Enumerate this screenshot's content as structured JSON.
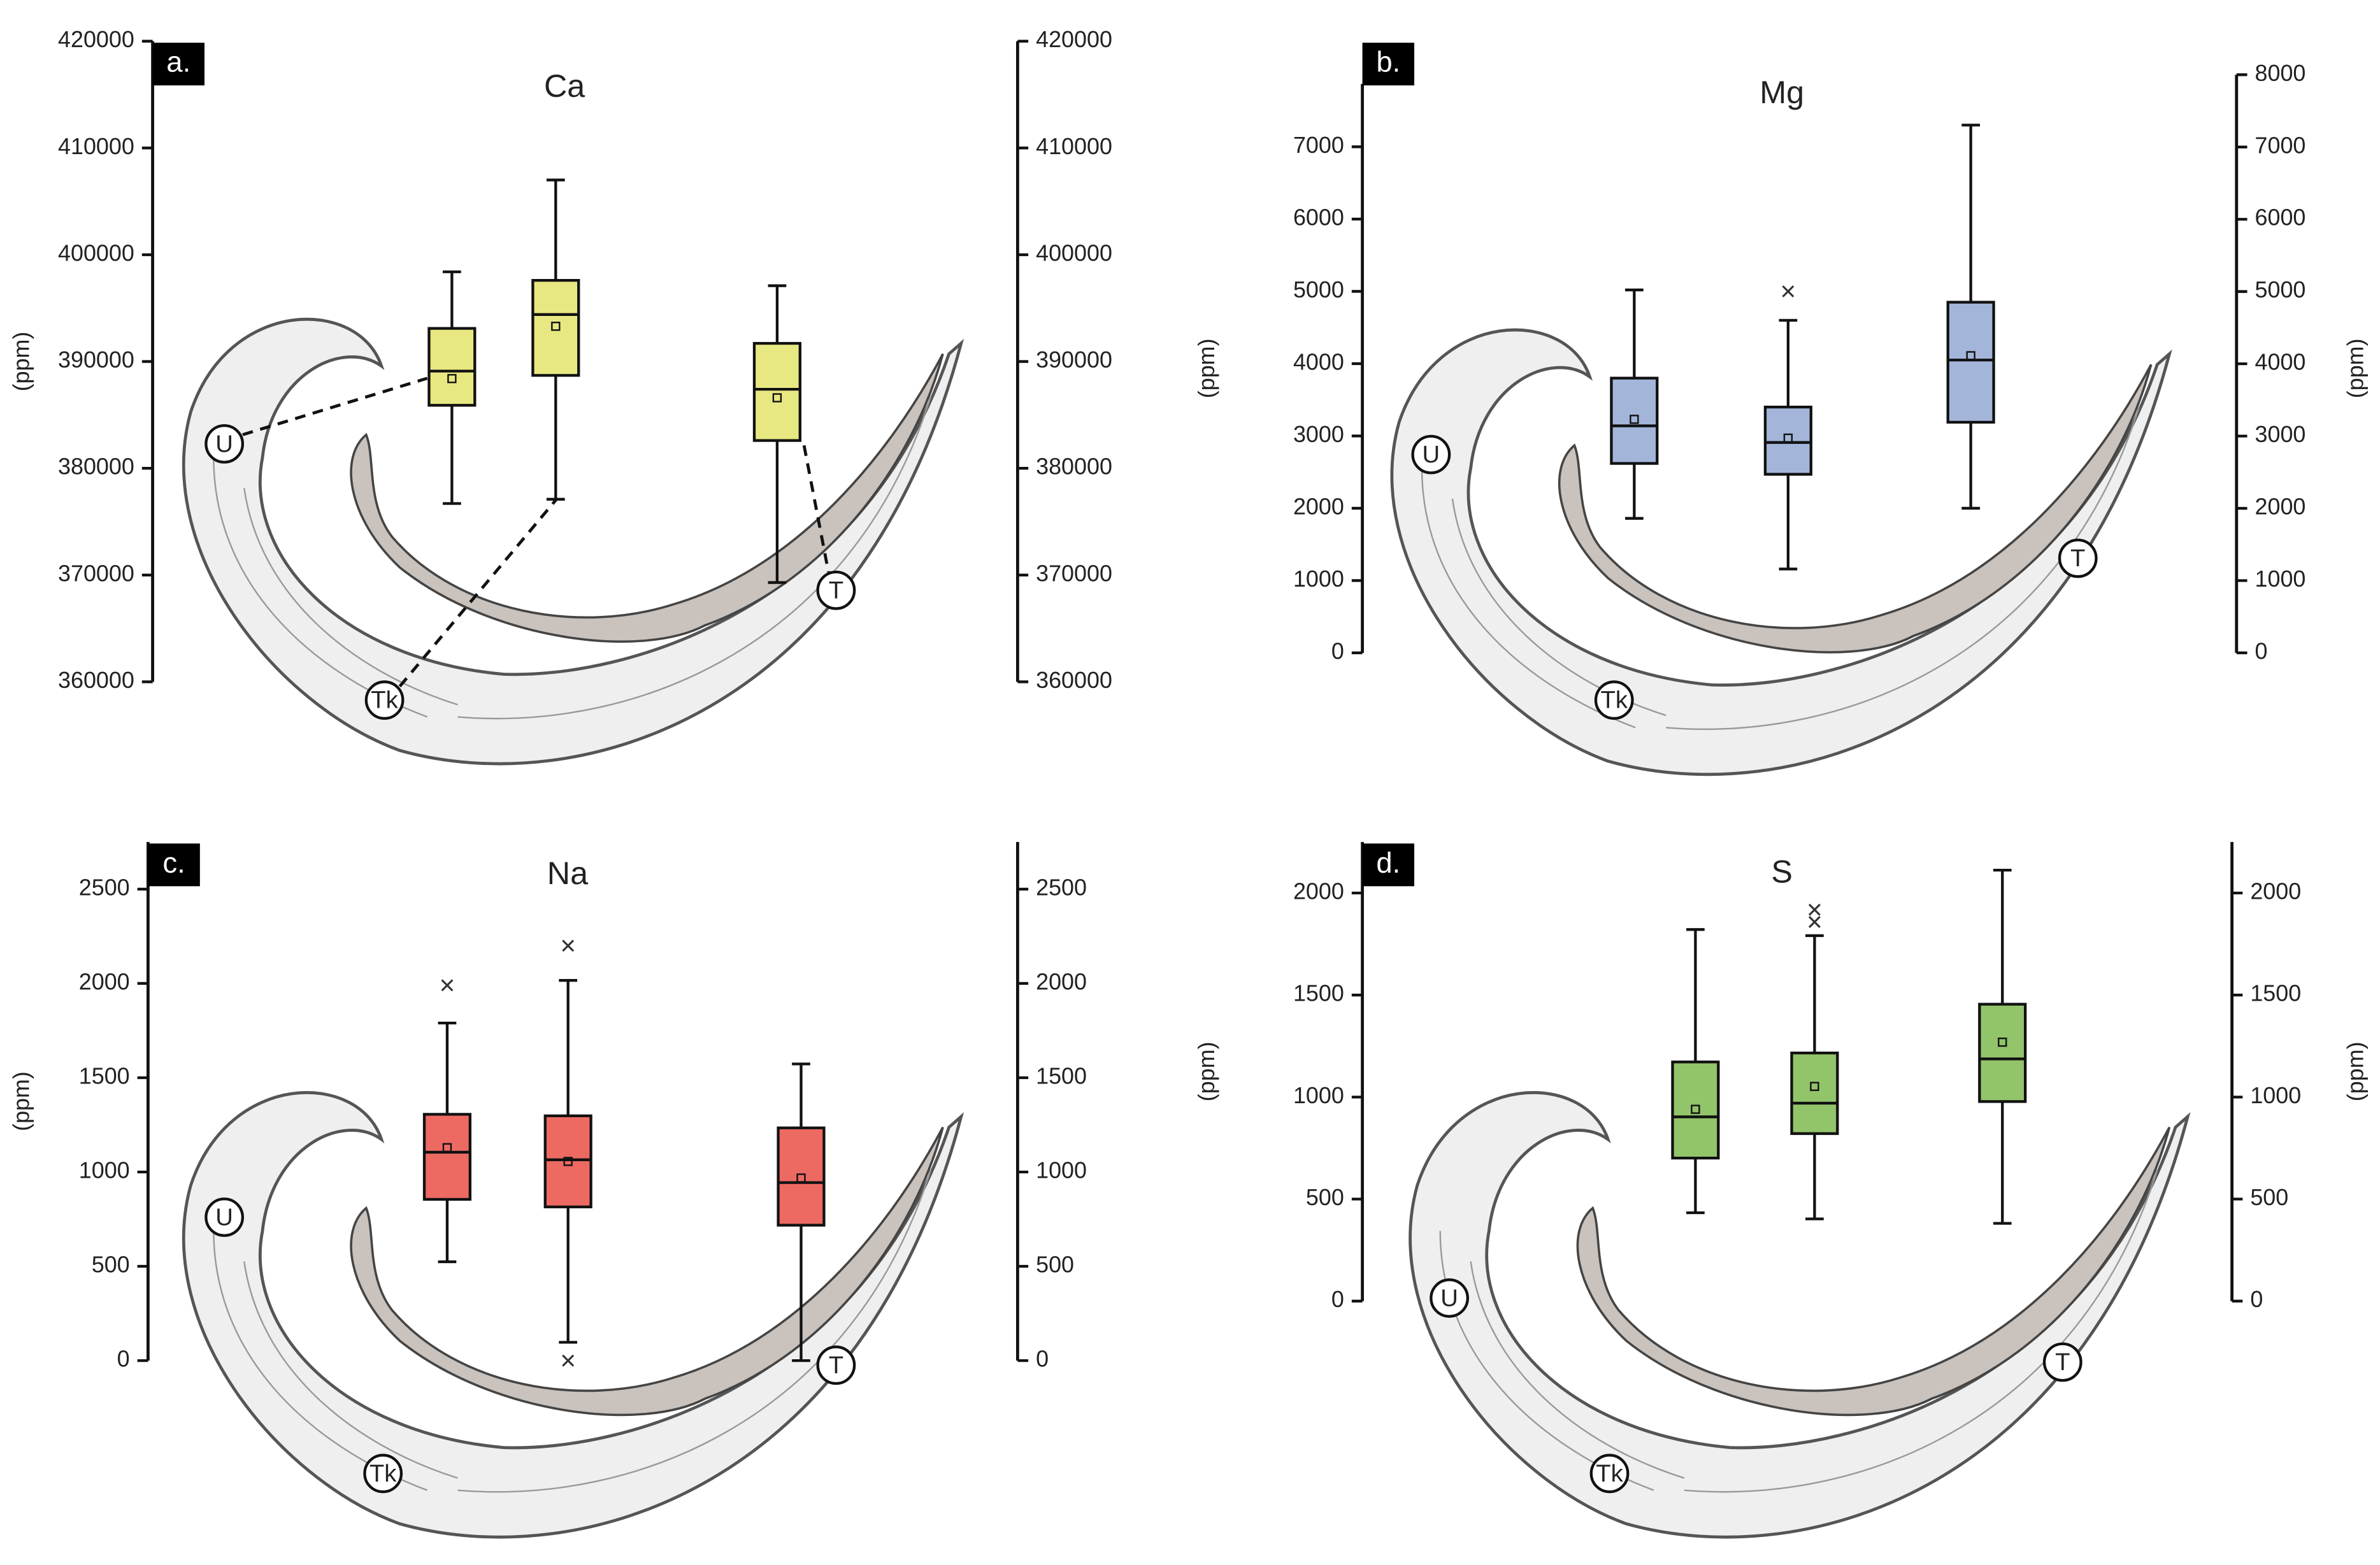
{
  "chart_data": [
    {
      "type": "box",
      "panel": "a.",
      "title": "Ca",
      "ylabel": "(ppm)",
      "color": "#e8e882",
      "categories": [
        "U",
        "Tk",
        "T"
      ],
      "boxes": [
        {
          "min": 376700,
          "q1": 385900,
          "median": 389100,
          "q3": 393100,
          "max": 398400,
          "mean": 388400,
          "outliers": []
        },
        {
          "min": 377100,
          "q1": 388700,
          "median": 394400,
          "q3": 397600,
          "max": 407000,
          "mean": 393300,
          "outliers": []
        },
        {
          "min": 369300,
          "q1": 382600,
          "median": 387400,
          "q3": 391700,
          "max": 397100,
          "mean": 386600,
          "outliers": []
        }
      ],
      "ylim": [
        360000,
        420000
      ],
      "yticks": [
        360000,
        370000,
        380000,
        390000,
        400000,
        410000,
        420000
      ],
      "y2lim": [
        360000,
        420000
      ],
      "y2ticks": [
        360000,
        370000,
        380000,
        390000,
        400000,
        410000,
        420000
      ]
    },
    {
      "type": "box",
      "panel": "b.",
      "title": "Mg",
      "ylabel": "(ppm)",
      "y2label": "(ppm)",
      "color": "#a3b5d9",
      "categories": [
        "U",
        "Tk",
        "T"
      ],
      "boxes": [
        {
          "min": 1860,
          "q1": 2620,
          "median": 3140,
          "q3": 3800,
          "max": 5020,
          "mean": 3230,
          "outliers": []
        },
        {
          "min": 1160,
          "q1": 2470,
          "median": 2910,
          "q3": 3400,
          "max": 4600,
          "mean": 2970,
          "outliers": [
            5000
          ]
        },
        {
          "min": 2000,
          "q1": 3190,
          "median": 4050,
          "q3": 4850,
          "max": 7300,
          "mean": 4110,
          "outliers": []
        }
      ],
      "ylim": [
        0,
        7870
      ],
      "yticks": [
        0,
        1000,
        2000,
        3000,
        4000,
        5000,
        6000,
        7000
      ],
      "y2lim": [
        0,
        8000
      ],
      "y2ticks": [
        0,
        1000,
        2000,
        3000,
        4000,
        5000,
        6000,
        7000,
        8000
      ]
    },
    {
      "type": "box",
      "panel": "c.",
      "title": "Na",
      "ylabel": "(ppm)",
      "color": "#ec6a62",
      "categories": [
        "U",
        "Tk",
        "T"
      ],
      "boxes": [
        {
          "min": 524,
          "q1": 855,
          "median": 1105,
          "q3": 1306,
          "max": 1790,
          "mean": 1129,
          "outliers": [
            1990
          ]
        },
        {
          "min": 97,
          "q1": 815,
          "median": 1065,
          "q3": 1298,
          "max": 2016,
          "mean": 1056,
          "outliers": [
            2200,
            0
          ]
        },
        {
          "min": 0,
          "q1": 718,
          "median": 944,
          "q3": 1234,
          "max": 1573,
          "mean": 968,
          "outliers": []
        }
      ],
      "ylim": [
        0,
        2750
      ],
      "yticks": [
        0,
        500,
        1000,
        1500,
        2000,
        2500
      ],
      "y2lim": [
        0,
        2750
      ],
      "y2ticks": [
        0,
        500,
        1000,
        1500,
        2000,
        2500
      ]
    },
    {
      "type": "box",
      "panel": "d.",
      "title": "S",
      "ylabel": "(ppm)",
      "y2label": "(ppm)",
      "color": "#92c46a",
      "categories": [
        "U",
        "Tk",
        "T"
      ],
      "boxes": [
        {
          "min": 433,
          "q1": 701,
          "median": 903,
          "q3": 1172,
          "max": 1821,
          "mean": 940,
          "outliers": []
        },
        {
          "min": 403,
          "q1": 821,
          "median": 970,
          "q3": 1216,
          "max": 1791,
          "mean": 1052,
          "outliers": [
            1918,
            1858
          ]
        },
        {
          "min": 381,
          "q1": 978,
          "median": 1187,
          "q3": 1455,
          "max": 2112,
          "mean": 1269,
          "outliers": []
        }
      ],
      "ylim": [
        0,
        2250
      ],
      "yticks": [
        0,
        500,
        1000,
        1500,
        2000
      ],
      "y2lim": [
        0,
        2250
      ],
      "y2ticks": [
        0,
        500,
        1000,
        1500,
        2000
      ]
    }
  ]
}
